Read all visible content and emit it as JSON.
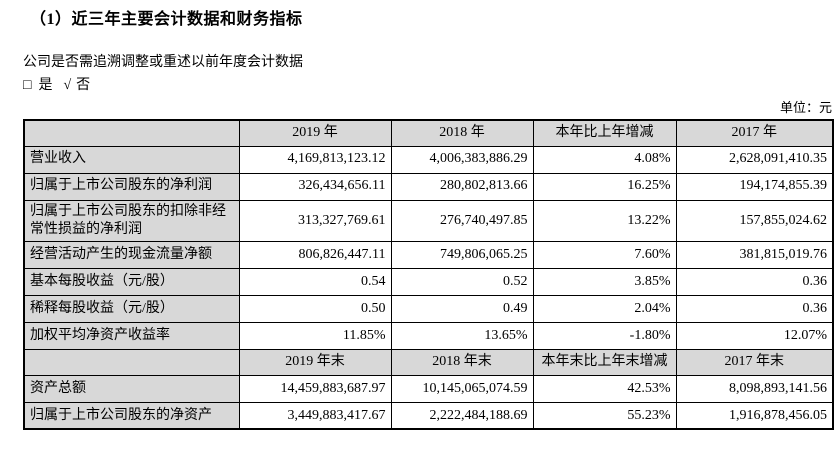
{
  "doc": {
    "title": "（1）近三年主要会计数据和财务指标",
    "restatement_question": "公司是否需追溯调整或重述以前年度会计数据",
    "answer": {
      "box_symbol": "□",
      "yes_label": "是",
      "check_symbol": "√",
      "no_label": "否"
    },
    "unit_label": "单位：元"
  },
  "colors": {
    "header_fill": "#d8d8d8",
    "border": "#000000",
    "text": "#000000",
    "background": "#ffffff"
  },
  "table": {
    "annual_header": {
      "label": "",
      "y2019": "2019 年",
      "y2018": "2018 年",
      "change": "本年比上年增减",
      "y2017": "2017 年"
    },
    "annual_rows": [
      {
        "label": "营业收入",
        "y2019": "4,169,813,123.12",
        "y2018": "4,006,383,886.29",
        "change": "4.08%",
        "y2017": "2,628,091,410.35"
      },
      {
        "label": "归属于上市公司股东的净利润",
        "y2019": "326,434,656.11",
        "y2018": "280,802,813.66",
        "change": "16.25%",
        "y2017": "194,174,855.39"
      },
      {
        "label": "归属于上市公司股东的扣除非经常性损益的净利润",
        "y2019": "313,327,769.61",
        "y2018": "276,740,497.85",
        "change": "13.22%",
        "y2017": "157,855,024.62"
      },
      {
        "label": "经营活动产生的现金流量净额",
        "y2019": "806,826,447.11",
        "y2018": "749,806,065.25",
        "change": "7.60%",
        "y2017": "381,815,019.76"
      },
      {
        "label": "基本每股收益（元/股）",
        "y2019": "0.54",
        "y2018": "0.52",
        "change": "3.85%",
        "y2017": "0.36"
      },
      {
        "label": "稀释每股收益（元/股）",
        "y2019": "0.50",
        "y2018": "0.49",
        "change": "2.04%",
        "y2017": "0.36"
      },
      {
        "label": "加权平均净资产收益率",
        "y2019": "11.85%",
        "y2018": "13.65%",
        "change": "-1.80%",
        "y2017": "12.07%"
      }
    ],
    "yearend_header": {
      "label": "",
      "y2019": "2019 年末",
      "y2018": "2018 年末",
      "change": "本年末比上年末增减",
      "y2017": "2017 年末"
    },
    "yearend_rows": [
      {
        "label": "资产总额",
        "y2019": "14,459,883,687.97",
        "y2018": "10,145,065,074.59",
        "change": "42.53%",
        "y2017": "8,098,893,141.56"
      },
      {
        "label": "归属于上市公司股东的净资产",
        "y2019": "3,449,883,417.67",
        "y2018": "2,222,484,188.69",
        "change": "55.23%",
        "y2017": "1,916,878,456.05"
      }
    ]
  }
}
